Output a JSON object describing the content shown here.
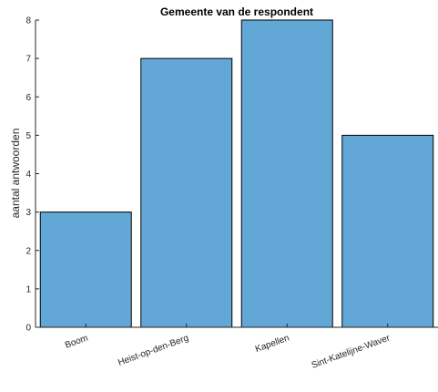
{
  "chart_data": {
    "type": "bar",
    "title": "Gemeente van de respondent",
    "xlabel": "",
    "ylabel": "aantal antwoorden",
    "categories": [
      "Boom",
      "Heist-op-den-Berg",
      "Kapellen",
      "Sint-Katelijne-Waver"
    ],
    "values": [
      3,
      7,
      8,
      5
    ],
    "ylim": [
      0,
      8
    ],
    "yticks": [
      "0",
      "1",
      "2",
      "3",
      "4",
      "5",
      "6",
      "7",
      "8"
    ],
    "grid": false,
    "bar_color": "#62a7d6",
    "bar_edge_color": "#000000"
  }
}
